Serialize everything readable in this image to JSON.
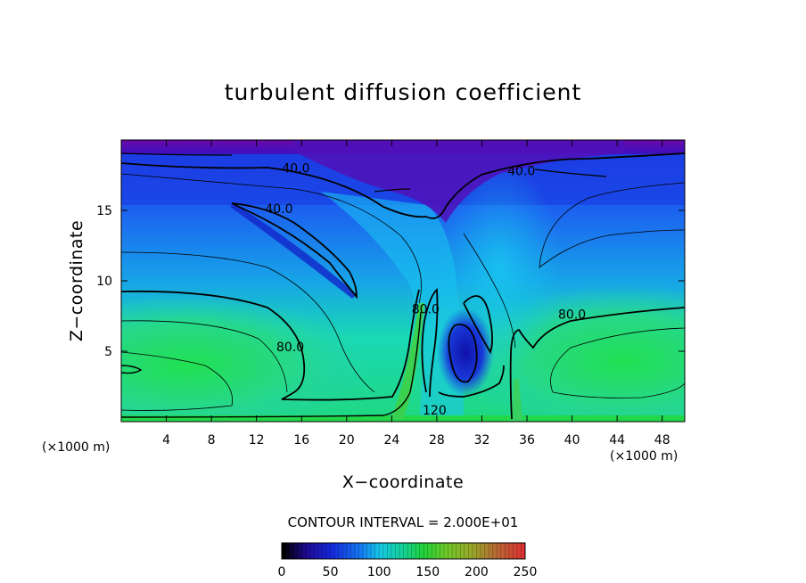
{
  "chart_data": {
    "type": "heatmap",
    "title": "turbulent diffusion coefficient",
    "xlabel": "X−coordinate",
    "ylabel": "Z−coordinate",
    "x_unit": "(×1000 m)",
    "z_unit": "(×1000 m)",
    "xlim": [
      0,
      50
    ],
    "ylim": [
      0,
      20
    ],
    "x_ticks": [
      4,
      8,
      12,
      16,
      20,
      24,
      28,
      32,
      36,
      40,
      44,
      48
    ],
    "y_ticks": [
      5,
      10,
      15
    ],
    "contour_interval_text": "CONTOUR INTERVAL = 2.000E+01",
    "colorbar": {
      "min": 0,
      "max": 250,
      "ticks": [
        0,
        50,
        100,
        150,
        200,
        250
      ]
    },
    "contour_labels": [
      {
        "text": "40.0",
        "x": 15.5,
        "z": 17.7
      },
      {
        "text": "40.0",
        "x": 14.0,
        "z": 14.8
      },
      {
        "text": "40.0",
        "x": 35.5,
        "z": 17.5
      },
      {
        "text": "80.0",
        "x": 15.0,
        "z": 5.0
      },
      {
        "text": "80.0",
        "x": 27.0,
        "z": 7.7
      },
      {
        "text": "80.0",
        "x": 40.0,
        "z": 7.3
      },
      {
        "text": "120",
        "x": 27.8,
        "z": 0.5
      }
    ],
    "field_description_points": [
      {
        "x": 25,
        "z": 19.5,
        "value": 5
      },
      {
        "x": 4,
        "z": 4,
        "value": 130
      },
      {
        "x": 46,
        "z": 4,
        "value": 130
      },
      {
        "x": 29.5,
        "z": 5,
        "value": 25
      },
      {
        "x": 14,
        "z": 14,
        "value": 45
      }
    ]
  }
}
